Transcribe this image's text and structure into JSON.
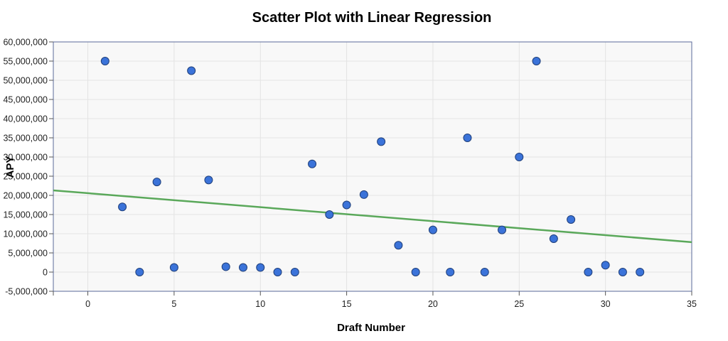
{
  "chart_data": {
    "type": "scatter",
    "title": "Scatter Plot with Linear Regression",
    "xlabel": "Draft Number",
    "ylabel": "APY",
    "xlim": [
      -2,
      35
    ],
    "ylim": [
      -5000000,
      60000000
    ],
    "xticks": [
      0,
      5,
      10,
      15,
      20,
      25,
      30,
      35
    ],
    "yticks": [
      -5000000,
      0,
      5000000,
      10000000,
      15000000,
      20000000,
      25000000,
      30000000,
      35000000,
      40000000,
      45000000,
      50000000,
      55000000,
      60000000
    ],
    "ytick_labels": [
      "-5,000,000",
      "0",
      "5,000,000",
      "10,000,000",
      "15,000,000",
      "20,000,000",
      "25,000,000",
      "30,000,000",
      "35,000,000",
      "40,000,000",
      "45,000,000",
      "50,000,000",
      "55,000,000",
      "60,000,000"
    ],
    "grid": true,
    "points": [
      {
        "x": 1,
        "y": 55000000
      },
      {
        "x": 2,
        "y": 17000000
      },
      {
        "x": 3,
        "y": 0
      },
      {
        "x": 4,
        "y": 23500000
      },
      {
        "x": 5,
        "y": 1200000
      },
      {
        "x": 6,
        "y": 52500000
      },
      {
        "x": 7,
        "y": 24000000
      },
      {
        "x": 8,
        "y": 1400000
      },
      {
        "x": 9,
        "y": 1200000
      },
      {
        "x": 10,
        "y": 1200000
      },
      {
        "x": 11,
        "y": 0
      },
      {
        "x": 12,
        "y": 0
      },
      {
        "x": 13,
        "y": 28200000
      },
      {
        "x": 14,
        "y": 15000000
      },
      {
        "x": 15,
        "y": 17500000
      },
      {
        "x": 16,
        "y": 20200000
      },
      {
        "x": 17,
        "y": 34000000
      },
      {
        "x": 18,
        "y": 7000000
      },
      {
        "x": 19,
        "y": 0
      },
      {
        "x": 20,
        "y": 11000000
      },
      {
        "x": 21,
        "y": 0
      },
      {
        "x": 22,
        "y": 35000000
      },
      {
        "x": 23,
        "y": 0
      },
      {
        "x": 24,
        "y": 11000000
      },
      {
        "x": 25,
        "y": 30000000
      },
      {
        "x": 26,
        "y": 55000000
      },
      {
        "x": 27,
        "y": 8700000
      },
      {
        "x": 28,
        "y": 13700000
      },
      {
        "x": 29,
        "y": 0
      },
      {
        "x": 30,
        "y": 1800000
      },
      {
        "x": 31,
        "y": 0
      },
      {
        "x": 32,
        "y": 0
      }
    ],
    "regression_line": {
      "x": [
        -2,
        35
      ],
      "y": [
        21300000,
        7800000
      ]
    },
    "colors": {
      "point": "#3b73d9",
      "point_stroke": "#1f3f7a",
      "line": "#5aa85a",
      "grid": "#e3e3e3",
      "plot_bg": "#f8f8f8",
      "axis": "#5a6a9a"
    }
  }
}
